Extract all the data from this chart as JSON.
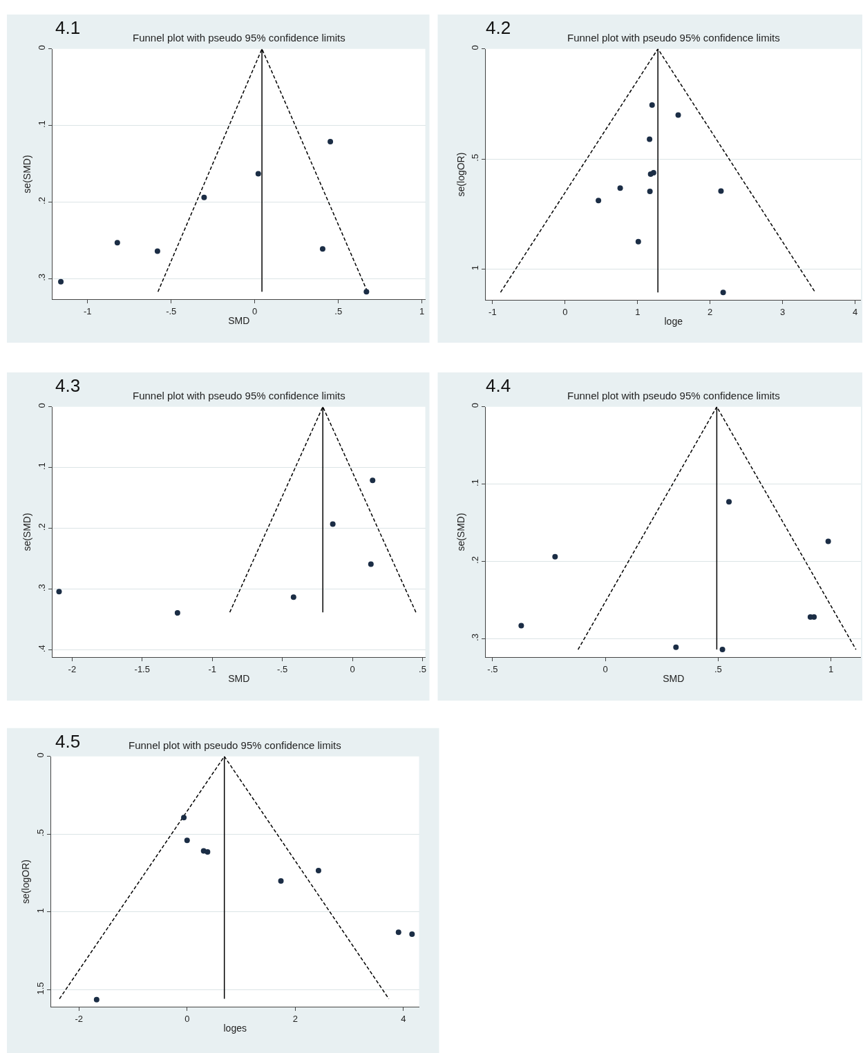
{
  "chart_data": [
    {
      "type": "scatter",
      "title": "Funnel plot with pseudo 95% confidence limits",
      "xlabel": "SMD",
      "ylabel": "se(SMD)",
      "annotations": [
        "4.1"
      ],
      "grid": "y",
      "xlim": [
        -1.21,
        1.02
      ],
      "ylim": [
        0.327,
        0
      ],
      "xticks": [
        {
          "value": -1,
          "label": "-1"
        },
        {
          "value": -0.5,
          "label": "-.5"
        },
        0,
        {
          "value": 0.5,
          "label": ".5"
        },
        1
      ],
      "yticks": [
        0,
        {
          "value": 0.1,
          "label": ".1"
        },
        {
          "value": 0.2,
          "label": ".2"
        },
        {
          "value": 0.3,
          "label": ".3"
        }
      ],
      "series": [
        {
          "type": "line",
          "color": "#000000",
          "line_style": "dashed",
          "marker": "none",
          "x": [
            -0.579,
            0.043,
            0.674
          ],
          "values": [
            0.317,
            0,
            0.317
          ]
        },
        {
          "type": "line",
          "color": "#000000",
          "line_style": "solid",
          "marker": "none",
          "x": [
            0.043,
            0.043
          ],
          "values": [
            0,
            0.317
          ]
        },
        {
          "type": "scatter",
          "color": "#1b2d45",
          "marker": "circle",
          "x": [
            0.452,
            0.021,
            -0.303,
            -0.822,
            -0.582,
            0.406,
            -1.16,
            0.668
          ],
          "values": [
            0.121,
            0.163,
            0.194,
            0.253,
            0.264,
            0.261,
            0.304,
            0.317
          ]
        }
      ]
    },
    {
      "type": "scatter",
      "title": "Funnel plot with pseudo 95% confidence limits",
      "xlabel": "loge",
      "ylabel": "se(logOR)",
      "annotations": [
        "4.2"
      ],
      "grid": "y",
      "xlim": [
        -1.09,
        4.08
      ],
      "ylim": [
        1.14,
        0
      ],
      "xticks": [
        -1,
        0,
        1,
        2,
        3,
        4
      ],
      "yticks": [
        0,
        {
          "value": 0.5,
          "label": ".5"
        },
        1
      ],
      "series": [
        {
          "type": "line",
          "color": "#000000",
          "line_style": "dashed",
          "marker": "none",
          "x": [
            -0.89,
            1.28,
            3.45
          ],
          "values": [
            1.105,
            0,
            1.105
          ]
        },
        {
          "type": "line",
          "color": "#000000",
          "line_style": "solid",
          "marker": "none",
          "x": [
            1.28,
            1.28
          ],
          "values": [
            0,
            1.105
          ]
        },
        {
          "type": "scatter",
          "color": "#1b2d45",
          "marker": "circle",
          "x": [
            1.2,
            1.56,
            1.165,
            1.18,
            1.22,
            0.76,
            1.17,
            0.46,
            2.15,
            1.01,
            2.18
          ],
          "values": [
            0.255,
            0.3,
            0.41,
            0.568,
            0.562,
            0.632,
            0.647,
            0.688,
            0.645,
            0.875,
            1.105
          ]
        }
      ]
    },
    {
      "type": "scatter",
      "title": "Funnel plot with pseudo 95% confidence limits",
      "xlabel": "SMD",
      "ylabel": "se(SMD)",
      "annotations": [
        "4.3"
      ],
      "grid": "y",
      "xlim": [
        -2.14,
        0.52
      ],
      "ylim": [
        0.412,
        0
      ],
      "xticks": [
        -2,
        -1.5,
        -1,
        {
          "value": -0.5,
          "label": "-.5"
        },
        0,
        {
          "value": 0.5,
          "label": ".5"
        }
      ],
      "yticks": [
        0,
        {
          "value": 0.1,
          "label": ".1"
        },
        {
          "value": 0.2,
          "label": ".2"
        },
        {
          "value": 0.3,
          "label": ".3"
        },
        {
          "value": 0.4,
          "label": ".4"
        }
      ],
      "series": [
        {
          "type": "line",
          "color": "#000000",
          "line_style": "dashed",
          "marker": "none",
          "x": [
            -0.875,
            -0.211,
            0.453
          ],
          "values": [
            0.338,
            0,
            0.338
          ]
        },
        {
          "type": "line",
          "color": "#000000",
          "line_style": "solid",
          "marker": "none",
          "x": [
            -0.211,
            -0.211
          ],
          "values": [
            0,
            0.338
          ]
        },
        {
          "type": "scatter",
          "color": "#1b2d45",
          "marker": "circle",
          "x": [
            0.144,
            -0.14,
            0.132,
            -0.42,
            -1.248,
            -2.093
          ],
          "values": [
            0.121,
            0.193,
            0.259,
            0.313,
            0.339,
            0.304
          ]
        }
      ]
    },
    {
      "type": "scatter",
      "title": "Funnel plot with pseudo 95% confidence limits",
      "xlabel": "SMD",
      "ylabel": "se(SMD)",
      "annotations": [
        "4.4"
      ],
      "grid": "y",
      "xlim": [
        -0.529,
        1.133
      ],
      "ylim": [
        0.324,
        0
      ],
      "xticks": [
        {
          "value": -0.5,
          "label": "-.5"
        },
        0,
        {
          "value": 0.5,
          "label": ".5"
        },
        1
      ],
      "yticks": [
        0,
        {
          "value": 0.1,
          "label": ".1"
        },
        {
          "value": 0.2,
          "label": ".2"
        },
        {
          "value": 0.3,
          "label": ".3"
        }
      ],
      "series": [
        {
          "type": "line",
          "color": "#000000",
          "line_style": "dashed",
          "marker": "none",
          "x": [
            -0.121,
            0.494,
            1.111
          ],
          "values": [
            0.314,
            0,
            0.314
          ]
        },
        {
          "type": "line",
          "color": "#000000",
          "line_style": "solid",
          "marker": "none",
          "x": [
            0.494,
            0.494
          ],
          "values": [
            0,
            0.314
          ]
        },
        {
          "type": "scatter",
          "color": "#1b2d45",
          "marker": "circle",
          "x": [
            0.548,
            0.988,
            -0.223,
            0.909,
            0.925,
            -0.373,
            0.313,
            0.519
          ],
          "values": [
            0.123,
            0.174,
            0.194,
            0.272,
            0.272,
            0.283,
            0.311,
            0.314
          ]
        }
      ]
    },
    {
      "type": "scatter",
      "title": "Funnel plot with pseudo 95% confidence limits",
      "xlabel": "loges",
      "ylabel": "se(logOR)",
      "annotations": [
        "4.5"
      ],
      "grid": "y",
      "xlim": [
        -2.515,
        4.29
      ],
      "ylim": [
        1.61,
        0
      ],
      "xticks": [
        -2,
        0,
        2,
        4
      ],
      "yticks": [
        0,
        {
          "value": 0.5,
          "label": ".5"
        },
        1,
        1.5
      ],
      "series": [
        {
          "type": "line",
          "color": "#000000",
          "line_style": "dashed",
          "marker": "none",
          "x": [
            -2.36,
            0.689,
            3.73
          ],
          "values": [
            1.558,
            0,
            1.558
          ]
        },
        {
          "type": "line",
          "color": "#000000",
          "line_style": "solid",
          "marker": "none",
          "x": [
            0.689,
            0.689
          ],
          "values": [
            0,
            1.558
          ]
        },
        {
          "type": "scatter",
          "color": "#1b2d45",
          "marker": "circle",
          "x": [
            -0.06,
            0.0,
            0.306,
            0.378,
            1.735,
            2.43,
            3.91,
            4.16,
            -1.673
          ],
          "values": [
            0.393,
            0.54,
            0.607,
            0.614,
            0.801,
            0.734,
            1.13,
            1.143,
            1.563
          ]
        }
      ]
    }
  ]
}
